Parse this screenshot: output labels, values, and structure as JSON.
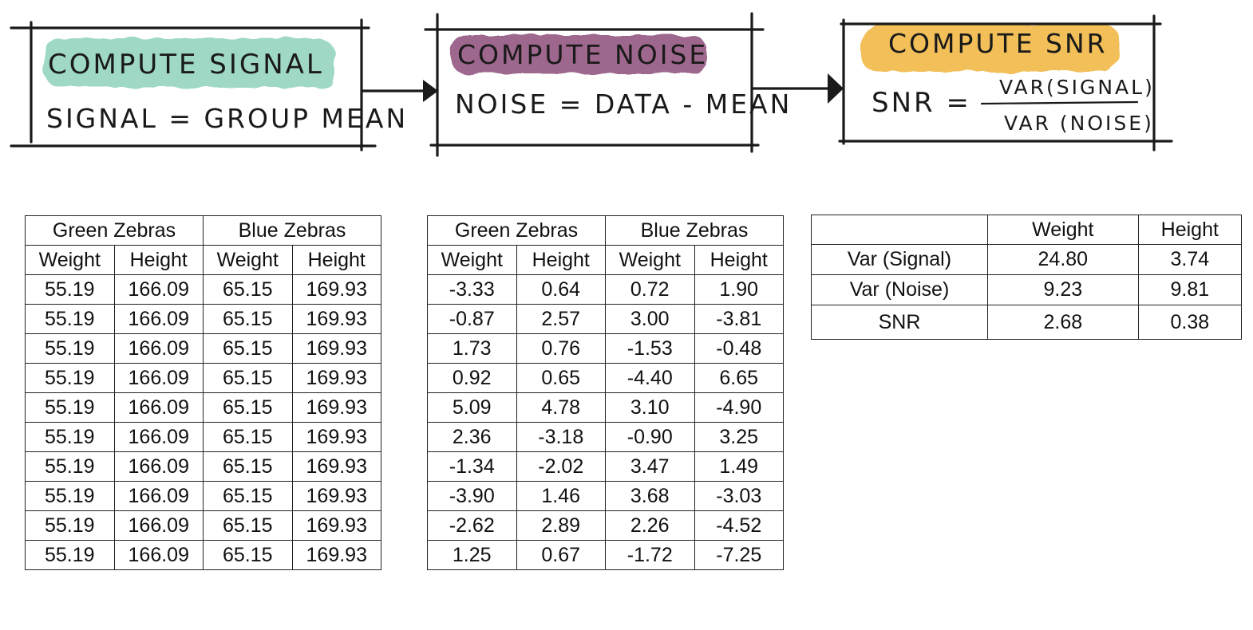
{
  "steps": [
    {
      "title": "COMPUTE SIGNAL",
      "formula": "SIGNAL = GROUP MEAN",
      "highlight": "#8fd3bd"
    },
    {
      "title": "COMPUTE NOISE",
      "formula": "NOISE = DATA - MEAN",
      "highlight": "#8e4e7a"
    },
    {
      "title": "COMPUTE SNR",
      "formula_lhs": "SNR =",
      "numerator": "VAR(SIGNAL)",
      "denominator": "VAR (NOISE)",
      "highlight": "#f0b43a"
    }
  ],
  "signal_table": {
    "groups": [
      "Green Zebras",
      "Blue Zebras"
    ],
    "columns": [
      "Weight",
      "Height",
      "Weight",
      "Height"
    ],
    "rows": [
      [
        "55.19",
        "166.09",
        "65.15",
        "169.93"
      ],
      [
        "55.19",
        "166.09",
        "65.15",
        "169.93"
      ],
      [
        "55.19",
        "166.09",
        "65.15",
        "169.93"
      ],
      [
        "55.19",
        "166.09",
        "65.15",
        "169.93"
      ],
      [
        "55.19",
        "166.09",
        "65.15",
        "169.93"
      ],
      [
        "55.19",
        "166.09",
        "65.15",
        "169.93"
      ],
      [
        "55.19",
        "166.09",
        "65.15",
        "169.93"
      ],
      [
        "55.19",
        "166.09",
        "65.15",
        "169.93"
      ],
      [
        "55.19",
        "166.09",
        "65.15",
        "169.93"
      ],
      [
        "55.19",
        "166.09",
        "65.15",
        "169.93"
      ]
    ]
  },
  "noise_table": {
    "groups": [
      "Green Zebras",
      "Blue Zebras"
    ],
    "columns": [
      "Weight",
      "Height",
      "Weight",
      "Height"
    ],
    "rows": [
      [
        "-3.33",
        "0.64",
        "0.72",
        "1.90"
      ],
      [
        "-0.87",
        "2.57",
        "3.00",
        "-3.81"
      ],
      [
        "1.73",
        "0.76",
        "-1.53",
        "-0.48"
      ],
      [
        "0.92",
        "0.65",
        "-4.40",
        "6.65"
      ],
      [
        "5.09",
        "4.78",
        "3.10",
        "-4.90"
      ],
      [
        "2.36",
        "-3.18",
        "-0.90",
        "3.25"
      ],
      [
        "-1.34",
        "-2.02",
        "3.47",
        "1.49"
      ],
      [
        "-3.90",
        "1.46",
        "3.68",
        "-3.03"
      ],
      [
        "-2.62",
        "2.89",
        "2.26",
        "-4.52"
      ],
      [
        "1.25",
        "0.67",
        "-1.72",
        "-7.25"
      ]
    ]
  },
  "snr_table": {
    "columns": [
      "",
      "Weight",
      "Height"
    ],
    "rows": [
      [
        "Var (Signal)",
        "24.80",
        "3.74"
      ],
      [
        "Var (Noise)",
        "9.23",
        "9.81"
      ],
      [
        "SNR",
        "2.68",
        "0.38"
      ]
    ]
  }
}
